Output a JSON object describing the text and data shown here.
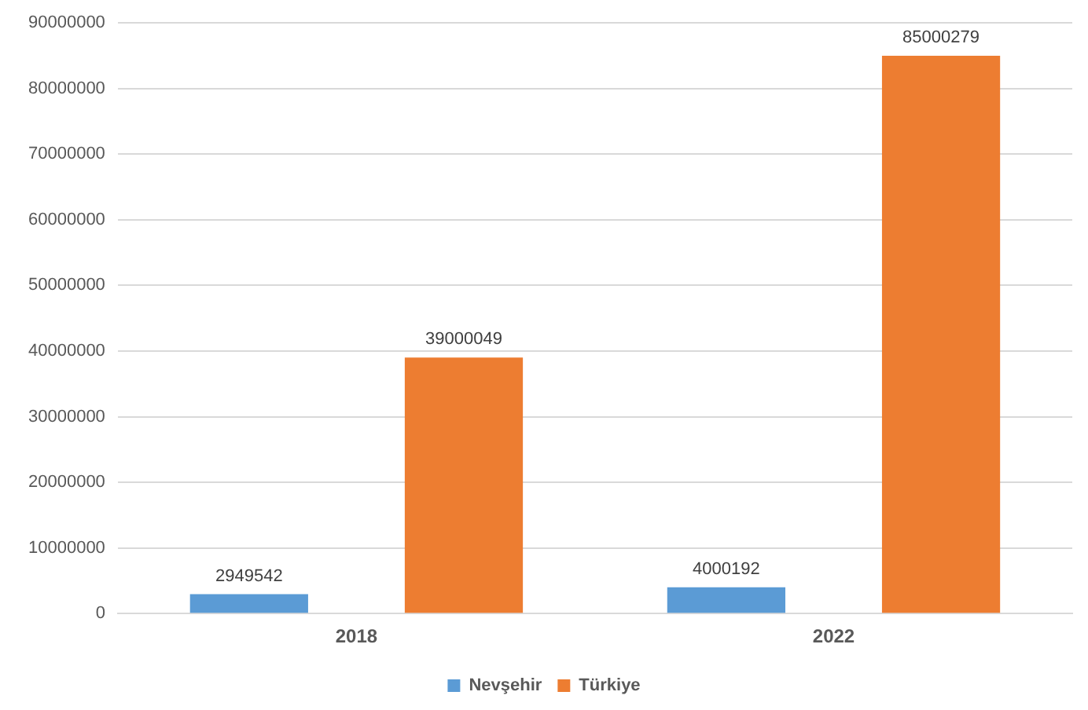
{
  "chart_data": {
    "type": "bar",
    "categories": [
      "2018",
      "2022"
    ],
    "series": [
      {
        "name": "Nevşehir",
        "color": "#5b9bd5",
        "values": [
          2949542,
          4000192
        ]
      },
      {
        "name": "Türkiye",
        "color": "#ed7d31",
        "values": [
          39000049,
          85000279
        ]
      }
    ],
    "ylim": [
      0,
      90000000
    ],
    "yticks": [
      0,
      10000000,
      20000000,
      30000000,
      40000000,
      50000000,
      60000000,
      70000000,
      80000000,
      90000000
    ],
    "grid": "y",
    "legend": "bottom",
    "data_labels": true
  }
}
